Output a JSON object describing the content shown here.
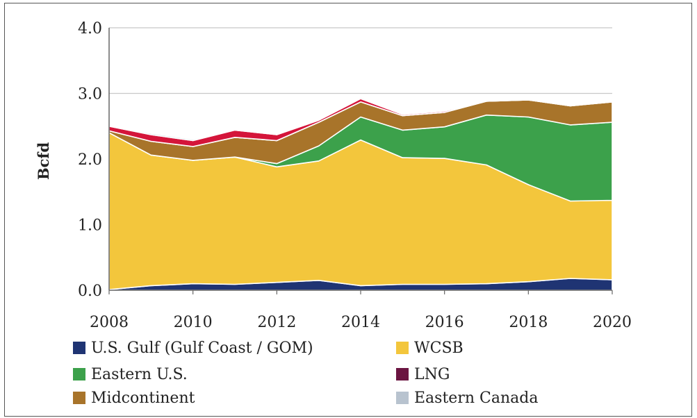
{
  "chart_data": {
    "type": "area",
    "stacked": true,
    "title": "",
    "xlabel": "",
    "ylabel": "Bcfd",
    "ylim": [
      0,
      4.0
    ],
    "xlim": [
      2008,
      2020
    ],
    "yticks": [
      "0.0",
      "1.0",
      "2.0",
      "3.0",
      "4.0"
    ],
    "xticks": [
      "2008",
      "2010",
      "2012",
      "2014",
      "2016",
      "2018",
      "2020"
    ],
    "grid": "horizontal",
    "legend_position": "bottom",
    "x": [
      2008,
      2009,
      2010,
      2011,
      2012,
      2013,
      2014,
      2015,
      2016,
      2017,
      2018,
      2019,
      2020
    ],
    "series": [
      {
        "name": "U.S. Gulf (Gulf Coast / GOM)",
        "color": "#1f3473",
        "values": [
          0.01,
          0.07,
          0.1,
          0.09,
          0.12,
          0.15,
          0.07,
          0.09,
          0.09,
          0.1,
          0.13,
          0.18,
          0.16
        ]
      },
      {
        "name": "WCSB",
        "color": "#f3c63c",
        "values": [
          2.39,
          1.99,
          1.88,
          1.94,
          1.76,
          1.82,
          2.22,
          1.93,
          1.92,
          1.81,
          1.48,
          1.18,
          1.21
        ]
      },
      {
        "name": "Eastern U.S.",
        "color": "#3ca14b",
        "values": [
          0,
          0,
          0,
          0,
          0.05,
          0.23,
          0.35,
          0.42,
          0.48,
          0.76,
          1.03,
          1.16,
          1.19
        ]
      },
      {
        "name": "Midcontinent",
        "color": "#a8742a",
        "values": [
          0.03,
          0.21,
          0.21,
          0.3,
          0.35,
          0.36,
          0.23,
          0.22,
          0.22,
          0.21,
          0.26,
          0.29,
          0.31
        ]
      },
      {
        "name": "LNG",
        "color": "#6b1541",
        "values": [
          0,
          0,
          0,
          0,
          0,
          0,
          0,
          0,
          0,
          0,
          0,
          0,
          0
        ]
      },
      {
        "name": "Red",
        "color": "#d4153a",
        "values": [
          0.07,
          0.1,
          0.09,
          0.11,
          0.09,
          0.03,
          0.05,
          0.02,
          0.02,
          0.01,
          0.01,
          0.01,
          0.01
        ]
      },
      {
        "name": "Eastern Canada",
        "color": "#b8c3cf",
        "values": [
          0.01,
          0.02,
          0.02,
          0.01,
          0.01,
          0.01,
          0.02,
          0.01,
          0.01,
          0.01,
          0.01,
          0.01,
          0.01
        ]
      }
    ],
    "legend": [
      {
        "label": "U.S. Gulf (Gulf Coast / GOM)",
        "color": "#1f3473"
      },
      {
        "label": "WCSB",
        "color": "#f3c63c"
      },
      {
        "label": "Eastern U.S.",
        "color": "#3ca14b"
      },
      {
        "label": "LNG",
        "color": "#6b1541"
      },
      {
        "label": "Midcontinent",
        "color": "#a8742a"
      },
      {
        "label": "Eastern Canada",
        "color": "#b8c3cf"
      }
    ]
  }
}
